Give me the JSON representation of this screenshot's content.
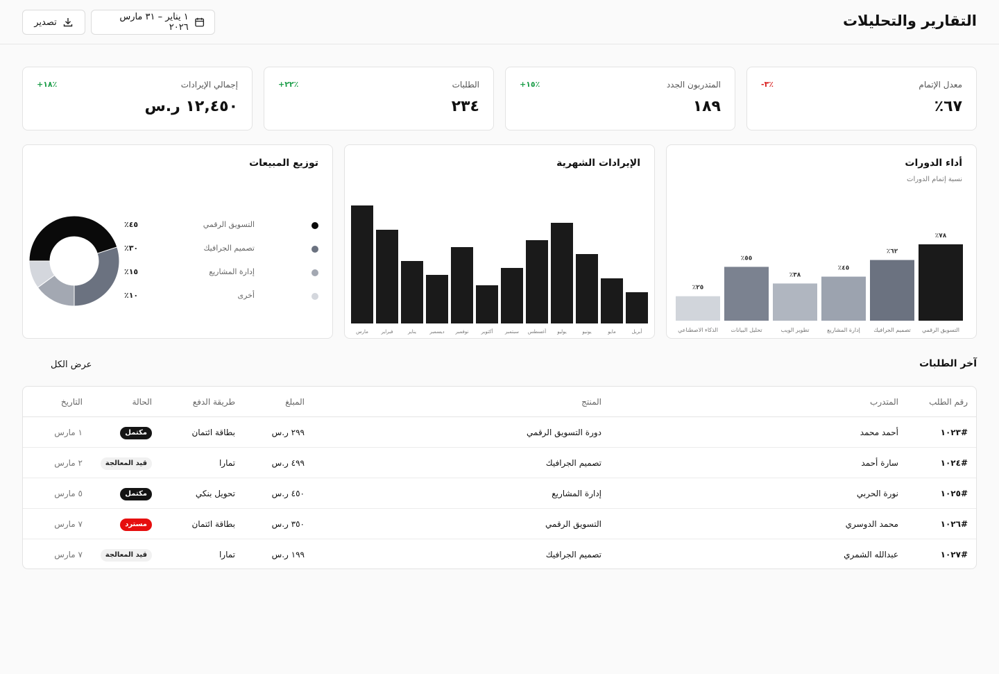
{
  "header": {
    "title": "التقارير والتحليلات",
    "date_range": "١ يناير – ٣١ مارس ٢٠٢٦",
    "export_label": "تصدير"
  },
  "kpis": [
    {
      "label": "معدل الإتمام",
      "value": "٦٧٪",
      "change": "-٣٪",
      "trend": "down"
    },
    {
      "label": "المتدربون الجدد",
      "value": "١٨٩",
      "change": "+١٥٪",
      "trend": "up"
    },
    {
      "label": "الطلبات",
      "value": "٢٣٤",
      "change": "+٢٢٪",
      "trend": "up"
    },
    {
      "label": "إجمالي الإيرادات",
      "value": "١٢,٤٥٠ ر.س",
      "change": "+١٨٪",
      "trend": "up"
    }
  ],
  "course_performance": {
    "title": "أداء الدورات",
    "subtitle": "نسبة إتمام الدورات",
    "chart_data": {
      "type": "bar",
      "categories": [
        "التسويق الرقمي",
        "تصميم الجرافيك",
        "إدارة المشاريع",
        "تطوير الويب",
        "تحليل البيانات",
        "الذكاء الاصطناعي"
      ],
      "values": [
        78,
        62,
        45,
        38,
        55,
        25
      ],
      "data_labels": [
        "٧٨٪",
        "٦٢٪",
        "٤٥٪",
        "٣٨٪",
        "٥٥٪",
        "٢٥٪"
      ],
      "colors": [
        "#1a1a1a",
        "#6b7280",
        "#9ca3af",
        "#b0b6c0",
        "#7b8290",
        "#d1d5db"
      ],
      "ylim": [
        0,
        100
      ]
    }
  },
  "monthly_revenue": {
    "title": "الإيرادات الشهرية",
    "chart_data": {
      "type": "bar",
      "categories": [
        "أبريل",
        "مايو",
        "يونيو",
        "يوليو",
        "أغسطس",
        "سبتمبر",
        "أكتوبر",
        "نوفمبر",
        "ديسمبر",
        "يناير",
        "فبراير",
        "مارس"
      ],
      "values": [
        45,
        65,
        100,
        145,
        120,
        80,
        55,
        110,
        70,
        90,
        135,
        170
      ],
      "color": "#1a1a1a"
    }
  },
  "sales_distribution": {
    "title": "توزيع المبيعات",
    "chart_data": {
      "type": "pie",
      "categories": [
        "التسويق الرقمي",
        "تصميم الجرافيك",
        "إدارة المشاريع",
        "أخرى"
      ],
      "values": [
        45,
        30,
        15,
        10
      ],
      "value_labels": [
        "٤٥٪",
        "٣٠٪",
        "١٥٪",
        "١٠٪"
      ],
      "colors": [
        "#0a0a0a",
        "#6b7280",
        "#a3a8b2",
        "#d4d7dd"
      ]
    }
  },
  "orders": {
    "title": "آخر الطلبات",
    "view_all": "عرض الكل",
    "columns": {
      "id": "رقم الطلب",
      "customer": "المتدرب",
      "product": "المنتج",
      "amount": "المبلغ",
      "payment": "طريقة الدفع",
      "status": "الحالة",
      "date": "التاريخ"
    },
    "rows": [
      {
        "id": "#١٠٢٣",
        "customer": "أحمد محمد",
        "product": "دورة التسويق الرقمي",
        "amount": "٢٩٩ ر.س",
        "payment": "بطاقة ائتمان",
        "status": "مكتمل",
        "status_type": "done",
        "date": "١ مارس"
      },
      {
        "id": "#١٠٢٤",
        "customer": "سارة أحمد",
        "product": "تصميم الجرافيك",
        "amount": "٤٩٩ ر.س",
        "payment": "تمارا",
        "status": "قيد المعالجة",
        "status_type": "processing",
        "date": "٢ مارس"
      },
      {
        "id": "#١٠٢٥",
        "customer": "نورة الحربي",
        "product": "إدارة المشاريع",
        "amount": "٤٥٠ ر.س",
        "payment": "تحويل بنكي",
        "status": "مكتمل",
        "status_type": "done",
        "date": "٥ مارس"
      },
      {
        "id": "#١٠٢٦",
        "customer": "محمد الدوسري",
        "product": "التسويق الرقمي",
        "amount": "٣٥٠ ر.س",
        "payment": "بطاقة ائتمان",
        "status": "مسترد",
        "status_type": "refunded",
        "date": "٧ مارس"
      },
      {
        "id": "#١٠٢٧",
        "customer": "عبدالله الشمري",
        "product": "تصميم الجرافيك",
        "amount": "١٩٩ ر.س",
        "payment": "تمارا",
        "status": "قيد المعالجة",
        "status_type": "processing",
        "date": "٧ مارس"
      }
    ]
  }
}
